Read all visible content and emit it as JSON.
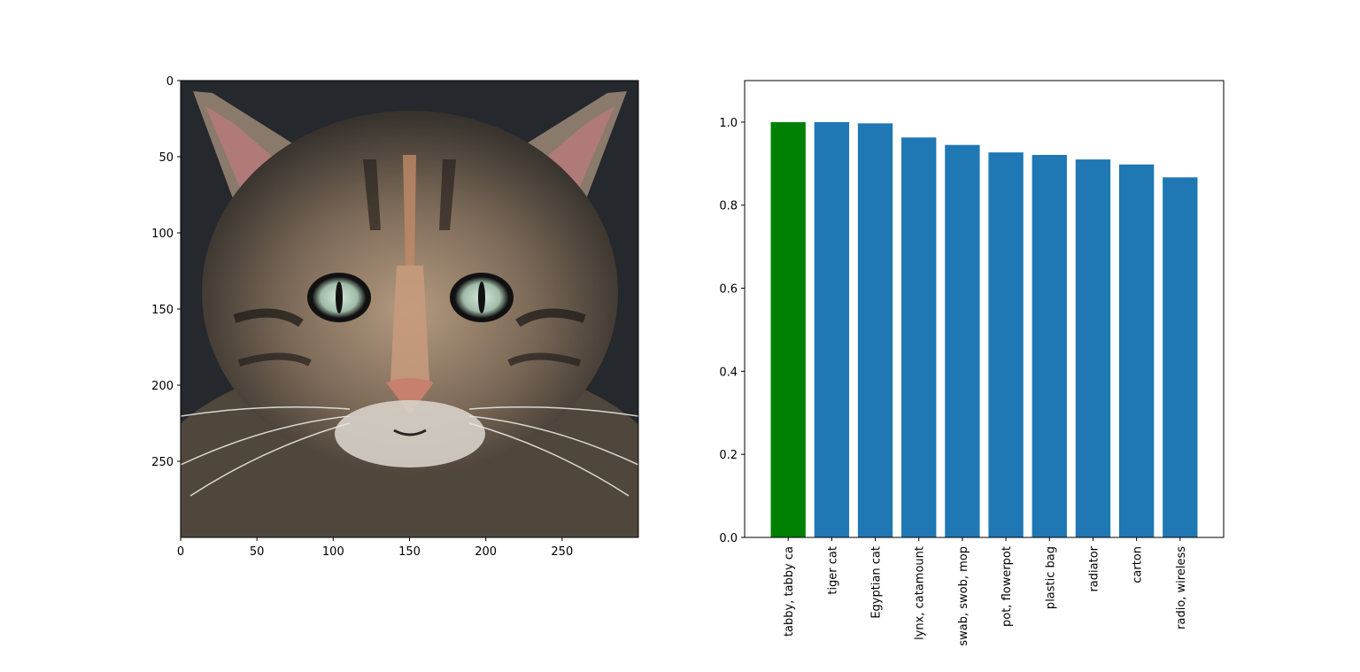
{
  "image_panel": {
    "description_free": true,
    "x_ticks": [
      0,
      50,
      100,
      150,
      200,
      250
    ],
    "y_ticks": [
      0,
      50,
      100,
      150,
      200,
      250
    ],
    "extent": [
      300,
      300
    ]
  },
  "chart_data": {
    "type": "bar",
    "categories": [
      "tabby, tabby ca",
      "tiger cat",
      "Egyptian cat",
      "lynx, catamount",
      "swab, swob, mop",
      "pot, flowerpot",
      "plastic bag",
      "radiator",
      "carton",
      "radio, wireless"
    ],
    "values": [
      1.0,
      1.0,
      0.997,
      0.963,
      0.945,
      0.927,
      0.921,
      0.91,
      0.898,
      0.867
    ],
    "colors": [
      "#008000",
      "#1f77b4",
      "#1f77b4",
      "#1f77b4",
      "#1f77b4",
      "#1f77b4",
      "#1f77b4",
      "#1f77b4",
      "#1f77b4",
      "#1f77b4"
    ],
    "y_ticks": [
      "0.0",
      "0.2",
      "0.4",
      "0.6",
      "0.8",
      "1.0"
    ],
    "ylim": [
      0,
      1.1
    ],
    "title": "",
    "xlabel": "",
    "ylabel": "",
    "grid": false
  }
}
